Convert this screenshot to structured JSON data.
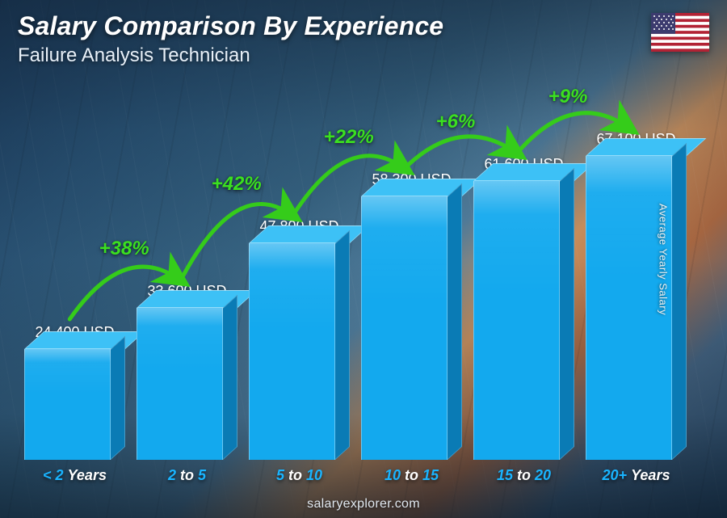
{
  "header": {
    "title": "Salary Comparison By Experience",
    "subtitle": "Failure Analysis Technician"
  },
  "y_axis_label": "Average Yearly Salary",
  "footer": "salaryexplorer.com",
  "flag": {
    "country": "United States",
    "stripe_red": "#b22234",
    "stripe_white": "#ffffff",
    "canton": "#3c3b6e"
  },
  "chart": {
    "type": "bar",
    "bar_color_front": "#13a9ee",
    "bar_color_top": "#3dc1f6",
    "bar_color_side": "#0a7bb5",
    "pct_color": "#3be020",
    "arrow_color": "#35cc1a",
    "value_scale_max": 75000,
    "bars": [
      {
        "label_a": "< 2",
        "label_b": "Years",
        "value": 24400,
        "value_label": "24,400 USD",
        "pct": null
      },
      {
        "label_a": "2",
        "label_b": "to",
        "label_c": "5",
        "value": 33600,
        "value_label": "33,600 USD",
        "pct": "+38%"
      },
      {
        "label_a": "5",
        "label_b": "to",
        "label_c": "10",
        "value": 47800,
        "value_label": "47,800 USD",
        "pct": "+42%"
      },
      {
        "label_a": "10",
        "label_b": "to",
        "label_c": "15",
        "value": 58300,
        "value_label": "58,300 USD",
        "pct": "+22%"
      },
      {
        "label_a": "15",
        "label_b": "to",
        "label_c": "20",
        "value": 61600,
        "value_label": "61,600 USD",
        "pct": "+6%"
      },
      {
        "label_a": "20+",
        "label_b": "Years",
        "value": 67100,
        "value_label": "67,100 USD",
        "pct": "+9%"
      }
    ]
  }
}
